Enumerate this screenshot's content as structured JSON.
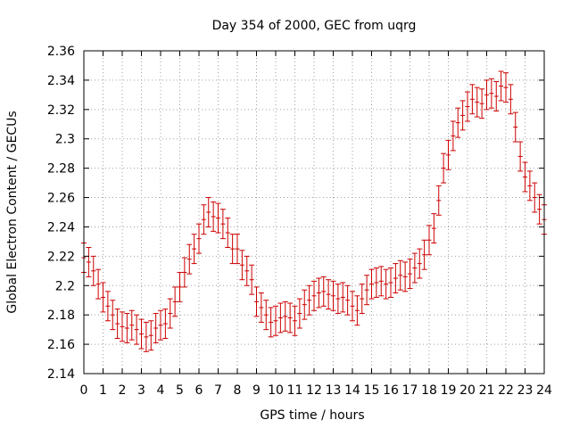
{
  "chart_data": {
    "type": "scatter",
    "title": "Day 354 of 2000, GEC from uqrg",
    "xlabel": "GPS time / hours",
    "ylabel": "Global Electron Content / GECUs",
    "xlim": [
      0,
      24
    ],
    "ylim": [
      2.14,
      2.36
    ],
    "x_ticks": [
      0,
      1,
      2,
      3,
      4,
      5,
      6,
      7,
      8,
      9,
      10,
      11,
      12,
      13,
      14,
      15,
      16,
      17,
      18,
      19,
      20,
      21,
      22,
      23,
      24
    ],
    "y_ticks": [
      2.14,
      2.16,
      2.18,
      2.2,
      2.22,
      2.24,
      2.26,
      2.28,
      2.3,
      2.32,
      2.34,
      2.36
    ],
    "grid": true,
    "series_color": "#cc0000",
    "error": 0.01,
    "series": [
      {
        "x": [
          0.0,
          0.25,
          0.5,
          0.75,
          1.0,
          1.25,
          1.5,
          1.75,
          2.0,
          2.25,
          2.5,
          2.75,
          3.0,
          3.25,
          3.5,
          3.75,
          4.0,
          4.25,
          4.5,
          4.75,
          5.0,
          5.25,
          5.5,
          5.75,
          6.0,
          6.25,
          6.5,
          6.75,
          7.0,
          7.25,
          7.5,
          7.75,
          8.0,
          8.25,
          8.5,
          8.75,
          9.0,
          9.25,
          9.5,
          9.75,
          10.0,
          10.25,
          10.5,
          10.75,
          11.0,
          11.25,
          11.5,
          11.75,
          12.0,
          12.25,
          12.5,
          12.75,
          13.0,
          13.25,
          13.5,
          13.75,
          14.0,
          14.25,
          14.5,
          14.75,
          15.0,
          15.25,
          15.5,
          15.75,
          16.0,
          16.25,
          16.5,
          16.75,
          17.0,
          17.25,
          17.5,
          17.75,
          18.0,
          18.25,
          18.5,
          18.75,
          19.0,
          19.25,
          19.5,
          19.75,
          20.0,
          20.25,
          20.5,
          20.75,
          21.0,
          21.25,
          21.5,
          21.75,
          22.0,
          22.25,
          22.5,
          22.75,
          23.0,
          23.25,
          23.5,
          23.75,
          24.0
        ],
        "y": [
          2.219,
          2.216,
          2.21,
          2.201,
          2.192,
          2.186,
          2.18,
          2.174,
          2.172,
          2.171,
          2.173,
          2.17,
          2.167,
          2.165,
          2.166,
          2.171,
          2.173,
          2.174,
          2.181,
          2.189,
          2.199,
          2.209,
          2.218,
          2.225,
          2.232,
          2.245,
          2.25,
          2.247,
          2.246,
          2.242,
          2.236,
          2.225,
          2.225,
          2.214,
          2.21,
          2.204,
          2.189,
          2.185,
          2.18,
          2.175,
          2.176,
          2.178,
          2.179,
          2.178,
          2.176,
          2.181,
          2.187,
          2.19,
          2.193,
          2.195,
          2.196,
          2.194,
          2.193,
          2.191,
          2.192,
          2.19,
          2.186,
          2.183,
          2.191,
          2.197,
          2.201,
          2.202,
          2.203,
          2.201,
          2.202,
          2.205,
          2.207,
          2.206,
          2.208,
          2.212,
          2.215,
          2.221,
          2.231,
          2.239,
          2.258,
          2.28,
          2.289,
          2.302,
          2.311,
          2.316,
          2.322,
          2.327,
          2.325,
          2.324,
          2.33,
          2.331,
          2.329,
          2.336,
          2.335,
          2.327,
          2.308,
          2.288,
          2.274,
          2.268,
          2.26,
          2.252,
          2.245
        ]
      }
    ]
  }
}
